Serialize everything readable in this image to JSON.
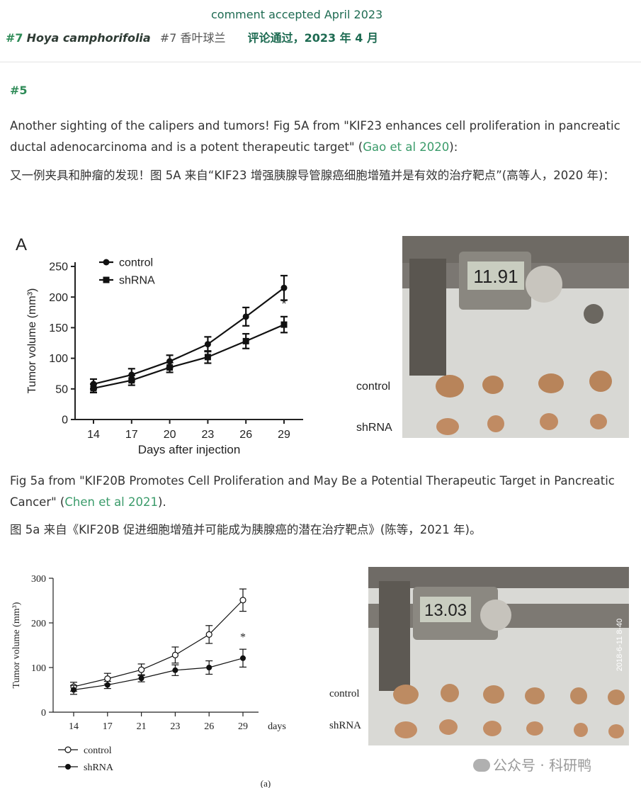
{
  "header": {
    "accepted_en": "comment accepted April 2023",
    "num": "#7",
    "species": "Hoya camphorifolia",
    "cn_num_name": "#7 香叶球兰",
    "accepted_cn": "评论通过，2023 年 4 月"
  },
  "section": {
    "num": "#5",
    "p1_before": "Another sighting of the calipers and tumors! Fig 5A from \"KIF23 enhances cell proliferation in pancreatic ductal adenocarcinoma and is a potent therapeutic target\" (",
    "p1_link": "Gao et al 2020",
    "p1_after": "):",
    "p1_cn": "又一例夹具和肿瘤的发现！图 5A 来自“KIF23 增强胰腺导管腺癌细胞增殖并是有效的治疗靶点”(高等人，2020 年)：",
    "p2_before": "Fig 5a from \"KIF20B Promotes Cell Proliferation and May Be a Potential Therapeutic Target in Pancreatic Cancer\" (",
    "p2_link": "Chen et al 2021",
    "p2_after": ").",
    "p2_cn": "图 5a 来自《KIF20B 促进细胞增殖并可能成为胰腺癌的潜在治疗靶点》(陈等，2021 年)。"
  },
  "figure1": {
    "panel_label": "A",
    "photo": {
      "display": "11.91",
      "row1": "control",
      "row2": "shRNA"
    }
  },
  "figure2": {
    "caption": "(a)",
    "photo": {
      "display": "13.03",
      "stamp": "2018-6-11 8-40",
      "row1": "control",
      "row2": "shRNA"
    }
  },
  "watermark": "公众号 · 科研鸭",
  "chart_data": [
    {
      "type": "line",
      "title": "",
      "xlabel": "Days after injection",
      "ylabel": "Tumor volume (mm³)",
      "x": [
        14,
        17,
        20,
        23,
        26,
        29
      ],
      "ylim": [
        0,
        250
      ],
      "yticks": [
        0,
        50,
        100,
        150,
        200,
        250
      ],
      "legend_position": "top-left",
      "grid": false,
      "annotation": "*",
      "series": [
        {
          "name": "control",
          "marker": "circle-filled",
          "values": [
            58,
            73,
            95,
            123,
            168,
            215
          ],
          "err": [
            8,
            10,
            10,
            12,
            15,
            20
          ]
        },
        {
          "name": "shRNA",
          "marker": "square-filled",
          "values": [
            51,
            64,
            85,
            102,
            128,
            155
          ],
          "err": [
            7,
            8,
            8,
            10,
            12,
            13
          ]
        }
      ]
    },
    {
      "type": "line",
      "title": "",
      "xlabel": "days",
      "ylabel": "Tumor volume (mm³)",
      "x": [
        14,
        17,
        21,
        23,
        26,
        29
      ],
      "ylim": [
        0,
        300
      ],
      "yticks": [
        0,
        100,
        200,
        300
      ],
      "legend_position": "bottom-left",
      "grid": false,
      "annotation": "*",
      "series": [
        {
          "name": "control",
          "marker": "circle-open",
          "values": [
            57,
            75,
            95,
            128,
            174,
            251
          ],
          "err": [
            10,
            12,
            13,
            18,
            20,
            25
          ]
        },
        {
          "name": "shRNA",
          "marker": "circle-filled",
          "values": [
            50,
            61,
            76,
            94,
            100,
            121
          ],
          "err": [
            10,
            8,
            8,
            12,
            15,
            20
          ]
        }
      ]
    }
  ]
}
